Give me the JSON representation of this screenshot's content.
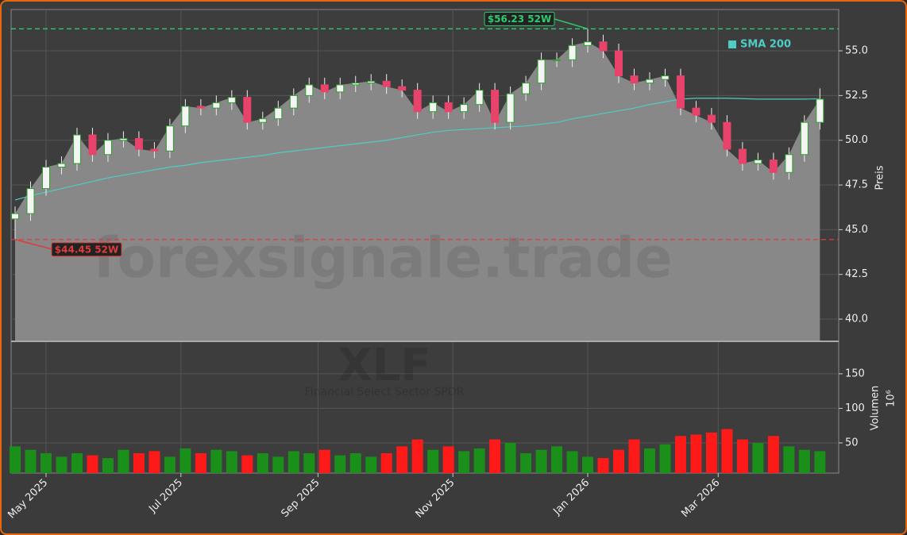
{
  "chart_data": {
    "type": "candlestick",
    "watermark": "forexsignale.trade",
    "ticker": "XLF",
    "ticker_name": "Financial Select Sector SPDR",
    "x": [
      106,
      113,
      120,
      127,
      134,
      141,
      148,
      155,
      162,
      169,
      176,
      183,
      190,
      197,
      204,
      211,
      218,
      225,
      232,
      239,
      246,
      253,
      260,
      267,
      274,
      281,
      288,
      295,
      302,
      309,
      316,
      323,
      330,
      337,
      344,
      351,
      358,
      365,
      372,
      379,
      386,
      393,
      400,
      407,
      414,
      421,
      428,
      435,
      442,
      449,
      456,
      463,
      470
    ],
    "open": [
      45.6,
      45.9,
      47.3,
      48.5,
      48.7,
      50.3,
      49.2,
      50.0,
      50.1,
      49.5,
      49.4,
      50.8,
      51.9,
      51.8,
      52.1,
      52.4,
      51.0,
      51.2,
      51.8,
      52.5,
      53.1,
      52.7,
      53.1,
      53.2,
      53.3,
      53.0,
      52.8,
      51.6,
      52.1,
      51.6,
      52.0,
      52.8,
      51.0,
      52.6,
      53.2,
      54.5,
      54.5,
      55.3,
      55.5,
      55.0,
      53.6,
      53.2,
      53.4,
      53.6,
      51.8,
      51.4,
      51.0,
      49.5,
      48.7,
      48.9,
      48.2,
      49.2,
      51.0
    ],
    "high": [
      46.3,
      47.7,
      48.9,
      49.1,
      50.7,
      50.7,
      50.4,
      50.5,
      50.5,
      49.9,
      51.2,
      52.3,
      52.3,
      52.5,
      52.8,
      52.8,
      51.6,
      52.2,
      52.9,
      53.5,
      53.5,
      53.5,
      53.6,
      53.7,
      53.7,
      53.4,
      53.2,
      52.5,
      52.5,
      52.4,
      53.2,
      53.2,
      53.0,
      53.6,
      54.9,
      54.9,
      55.7,
      56.23,
      55.9,
      55.4,
      54.0,
      53.8,
      54.0,
      54.0,
      52.2,
      51.8,
      51.4,
      49.9,
      49.3,
      49.3,
      49.6,
      51.4,
      52.9
    ],
    "low": [
      44.45,
      45.5,
      46.9,
      48.1,
      48.3,
      48.8,
      48.8,
      49.6,
      49.1,
      49.0,
      49.0,
      50.4,
      51.4,
      51.4,
      51.7,
      50.6,
      50.6,
      50.8,
      51.4,
      52.1,
      52.3,
      52.3,
      52.7,
      52.8,
      52.6,
      52.4,
      51.2,
      51.2,
      51.2,
      51.2,
      51.6,
      50.6,
      50.6,
      52.2,
      52.8,
      54.1,
      54.1,
      54.9,
      54.6,
      53.2,
      52.8,
      52.8,
      53.0,
      51.4,
      51.0,
      50.6,
      49.1,
      48.3,
      48.3,
      47.8,
      47.8,
      48.8,
      50.6
    ],
    "close": [
      45.9,
      47.3,
      48.5,
      48.7,
      50.3,
      49.2,
      50.0,
      50.1,
      49.5,
      49.4,
      50.8,
      51.9,
      51.8,
      52.1,
      52.4,
      51.0,
      51.2,
      51.8,
      52.5,
      53.1,
      52.7,
      53.1,
      53.2,
      53.3,
      53.0,
      52.8,
      51.6,
      52.1,
      51.6,
      52.0,
      52.8,
      51.0,
      52.6,
      53.2,
      54.5,
      54.5,
      55.3,
      55.5,
      55.0,
      53.6,
      53.2,
      53.4,
      53.6,
      51.8,
      51.4,
      51.0,
      49.5,
      48.7,
      48.9,
      48.2,
      49.2,
      51.0,
      52.3
    ],
    "up_color": "#2ca02c",
    "down_color": "#e8436b",
    "area_color": "#888888",
    "sma": {
      "name": "SMA 200",
      "color": "#4ecdc4",
      "values": [
        46.66,
        46.9,
        47.1,
        47.3,
        47.5,
        47.7,
        47.9,
        48.05,
        48.2,
        48.35,
        48.5,
        48.6,
        48.75,
        48.85,
        48.95,
        49.05,
        49.15,
        49.3,
        49.4,
        49.5,
        49.6,
        49.7,
        49.8,
        49.9,
        50.0,
        50.15,
        50.3,
        50.45,
        50.55,
        50.6,
        50.65,
        50.7,
        50.75,
        50.8,
        50.9,
        51.0,
        51.2,
        51.35,
        51.5,
        51.65,
        51.8,
        52.0,
        52.15,
        52.3,
        52.35,
        52.35,
        52.35,
        52.33,
        52.3,
        52.3,
        52.3,
        52.3,
        52.32
      ]
    },
    "ylabel": "Preis",
    "ylim": [
      38.76,
      57.31
    ],
    "yticks": [
      {
        "value": 40,
        "label": "40.0"
      },
      42.5,
      {
        "value": 45,
        "label": "45.0"
      },
      47.5,
      {
        "value": 50,
        "label": "50.0"
      },
      52.5,
      {
        "value": 55,
        "label": "55.0"
      }
    ],
    "xlim": [
      104.2,
      478.5
    ],
    "xticks": [
      {
        "value": 120,
        "label": "May 2025"
      },
      {
        "value": 181,
        "label": "Jul 2025"
      },
      {
        "value": 243,
        "label": "Sep 2025"
      },
      {
        "value": 304,
        "label": "Nov 2025"
      },
      {
        "value": 365,
        "label": "Jan 2026"
      },
      {
        "value": 424,
        "label": "Mar 2026"
      }
    ],
    "annotations": [
      {
        "value": 56.23,
        "label": "$56.23 52W",
        "color": "#2ecc71"
      },
      {
        "value": 44.45,
        "label": "$44.45 52W",
        "color": "#e03b3b"
      }
    ],
    "grid": true,
    "volume": {
      "label": "Volumen",
      "exponent": "10⁶",
      "ylim": [
        6.3,
        197
      ],
      "yticks": [
        50,
        100,
        150
      ],
      "up_color": "#1a8f1a",
      "down_color": "#ff1a1a",
      "values": [
        45,
        40,
        35,
        30,
        35,
        32,
        28,
        40,
        35,
        38,
        30,
        42,
        35,
        40,
        38,
        32,
        35,
        30,
        38,
        35,
        40,
        32,
        35,
        30,
        35,
        45,
        55,
        40,
        45,
        38,
        42,
        55,
        50,
        35,
        40,
        45,
        38,
        30,
        28,
        40,
        55,
        42,
        48,
        60,
        62,
        65,
        70,
        55,
        50,
        60,
        45,
        40,
        38
      ]
    }
  }
}
